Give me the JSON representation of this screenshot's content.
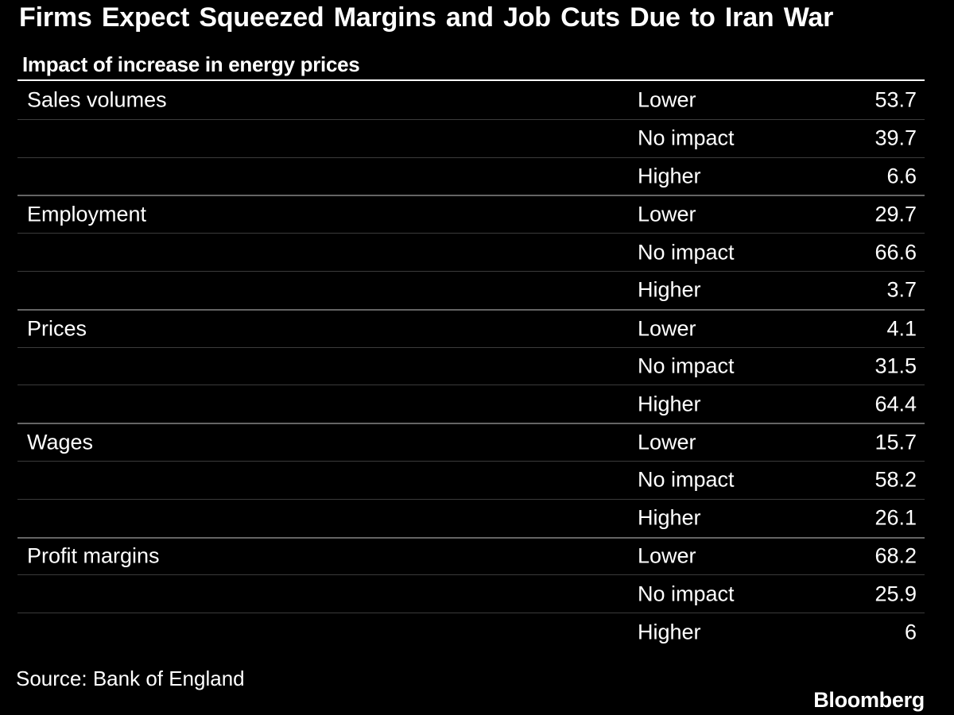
{
  "header": {
    "title": "Firms Expect Squeezed Margins and Job Cuts Due to Iran War",
    "subtitle": "Impact of increase in energy prices"
  },
  "chart_data": {
    "type": "table",
    "title": "Firms Expect Squeezed Margins and Job Cuts Due to Iran War",
    "subtitle": "Impact of increase in energy prices",
    "columns": [
      "category",
      "impact",
      "value"
    ],
    "impact_levels": [
      "Lower",
      "No impact",
      "Higher"
    ],
    "groups": [
      {
        "category": "Sales volumes",
        "rows": [
          {
            "impact": "Lower",
            "value": 53.7
          },
          {
            "impact": "No impact",
            "value": 39.7
          },
          {
            "impact": "Higher",
            "value": 6.6
          }
        ]
      },
      {
        "category": "Employment",
        "rows": [
          {
            "impact": "Lower",
            "value": 29.7
          },
          {
            "impact": "No impact",
            "value": 66.6
          },
          {
            "impact": "Higher",
            "value": 3.7
          }
        ]
      },
      {
        "category": "Prices",
        "rows": [
          {
            "impact": "Lower",
            "value": 4.1
          },
          {
            "impact": "No impact",
            "value": 31.5
          },
          {
            "impact": "Higher",
            "value": 64.4
          }
        ]
      },
      {
        "category": "Wages",
        "rows": [
          {
            "impact": "Lower",
            "value": 15.7
          },
          {
            "impact": "No impact",
            "value": 58.2
          },
          {
            "impact": "Higher",
            "value": 26.1
          }
        ]
      },
      {
        "category": "Profit margins",
        "rows": [
          {
            "impact": "Lower",
            "value": 68.2
          },
          {
            "impact": "No impact",
            "value": 25.9
          },
          {
            "impact": "Higher",
            "value": 6
          }
        ]
      }
    ]
  },
  "footer": {
    "source": "Source: Bank of England",
    "brand": "Bloomberg"
  },
  "colors": {
    "background": "#000000",
    "text": "#ffffff",
    "header_rule": "#ffffff",
    "row_divider": "#3b3b3b",
    "group_divider": "#646464"
  }
}
